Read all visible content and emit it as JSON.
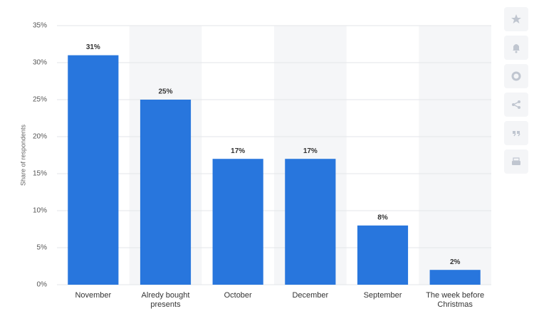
{
  "chart_data": {
    "type": "bar",
    "y_label": "Share of respondents",
    "categories": [
      "November",
      "Alredy bought presents",
      "October",
      "December",
      "September",
      "The week before Christmas"
    ],
    "values": [
      31,
      25,
      17,
      17,
      8,
      2
    ],
    "value_labels": [
      "31%",
      "25%",
      "17%",
      "17%",
      "8%",
      "2%"
    ],
    "color": "#2876dd",
    "ylim": [
      0,
      35
    ],
    "yticks": [
      {
        "value": 0,
        "label": "0%"
      },
      {
        "value": 5,
        "label": "5%"
      },
      {
        "value": 10,
        "label": "10%"
      },
      {
        "value": 15,
        "label": "15%"
      },
      {
        "value": 20,
        "label": "20%"
      },
      {
        "value": 25,
        "label": "25%"
      },
      {
        "value": 30,
        "label": "30%"
      },
      {
        "value": 35,
        "label": "35%"
      }
    ],
    "grid": true
  }
}
